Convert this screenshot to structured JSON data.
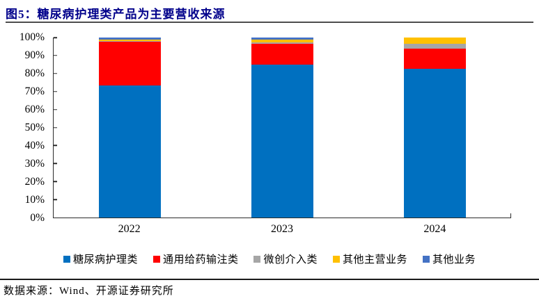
{
  "page": {
    "title": "图5：糖尿病护理类产品为主要营收来源",
    "title_color": "#00008B",
    "source_note": "数据来源：Wind、开源证券研究所"
  },
  "chart_data": {
    "type": "bar",
    "stacked": true,
    "categories": [
      "2022",
      "2023",
      "2024"
    ],
    "series": [
      {
        "name": "糖尿病护理类",
        "color": "#0070C0",
        "values": [
          73.5,
          85.0,
          82.6
        ]
      },
      {
        "name": "通用给药输注类",
        "color": "#FF0000",
        "values": [
          24.2,
          11.6,
          11.3
        ]
      },
      {
        "name": "微创介入类",
        "color": "#A6A6A6",
        "values": [
          0.2,
          0.8,
          2.7
        ]
      },
      {
        "name": "其他主营业务",
        "color": "#FFC000",
        "values": [
          1.1,
          1.5,
          3.4
        ]
      },
      {
        "name": "其他业务",
        "color": "#4472C4",
        "values": [
          1.0,
          1.1,
          0.0
        ]
      }
    ],
    "ylim": [
      0,
      100
    ],
    "ytick_step": 10,
    "ytick_suffix": "%",
    "grid": false,
    "legend_position": "bottom"
  }
}
